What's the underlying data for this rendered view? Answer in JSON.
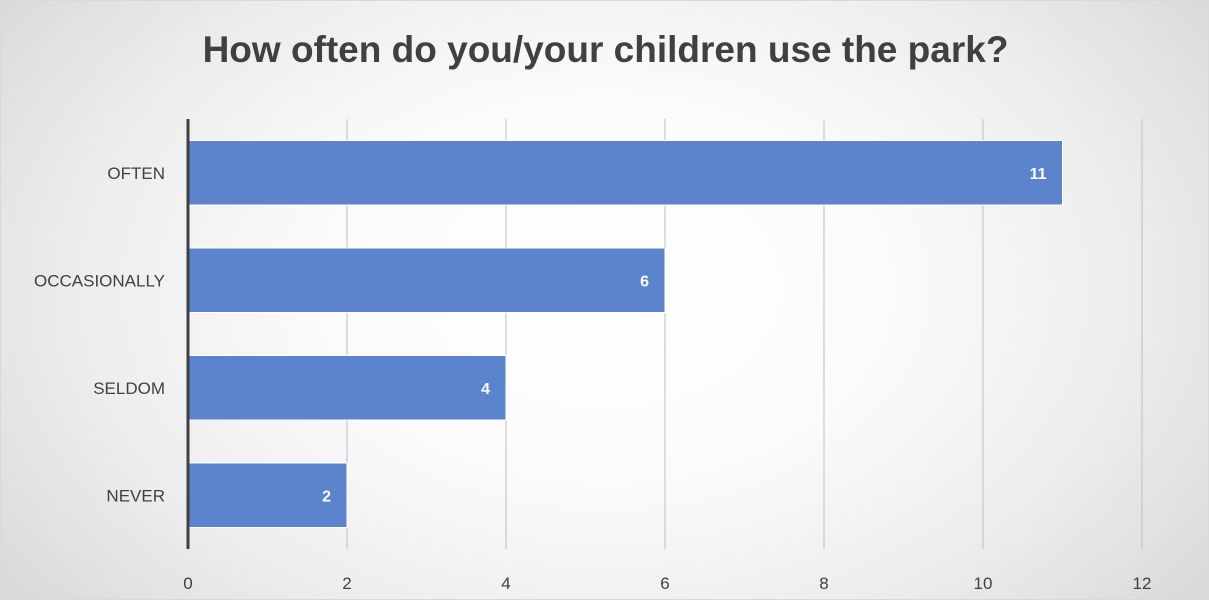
{
  "chart_data": {
    "type": "bar",
    "orientation": "horizontal",
    "title": "How often do you/your children use the park?",
    "categories": [
      "OFTEN",
      "OCCASIONALLY",
      "SELDOM",
      "NEVER"
    ],
    "values": [
      11,
      6,
      4,
      2
    ],
    "xlim": [
      0,
      12
    ],
    "xticks": [
      0,
      2,
      4,
      6,
      8,
      10,
      12
    ],
    "grid": true,
    "legend": "none",
    "bar_color": "#5b84cc",
    "data_labels": true
  }
}
